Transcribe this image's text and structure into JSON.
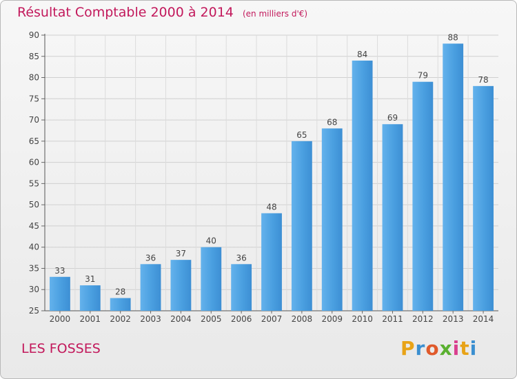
{
  "chart_data": {
    "type": "bar",
    "title": "Résultat Comptable 2000 à 2014",
    "unit_note": "(en milliers d'€)",
    "categories": [
      "2000",
      "2001",
      "2002",
      "2003",
      "2004",
      "2005",
      "2006",
      "2007",
      "2008",
      "2009",
      "2010",
      "2011",
      "2012",
      "2013",
      "2014"
    ],
    "values": [
      33,
      31,
      28,
      36,
      37,
      40,
      36,
      48,
      65,
      68,
      84,
      69,
      79,
      88,
      78
    ],
    "ylim": [
      25,
      90
    ],
    "yticks": [
      25,
      30,
      35,
      40,
      45,
      50,
      55,
      60,
      65,
      70,
      75,
      80,
      85,
      90
    ],
    "grid": true,
    "data_labels": true,
    "bar_color": "#3d8fd4",
    "bar_color_light": "#64b2ec",
    "grid_color": "#d0d0d0"
  },
  "footer": {
    "commune": "LES FOSSES",
    "brand": "Proxiti"
  },
  "colors": {
    "title": "#c2185b",
    "brand_letters": [
      "#e8a317",
      "#3b8fd0",
      "#e05a2b",
      "#5ab030",
      "#d93f8e",
      "#e8a317",
      "#3b8fd0"
    ]
  }
}
